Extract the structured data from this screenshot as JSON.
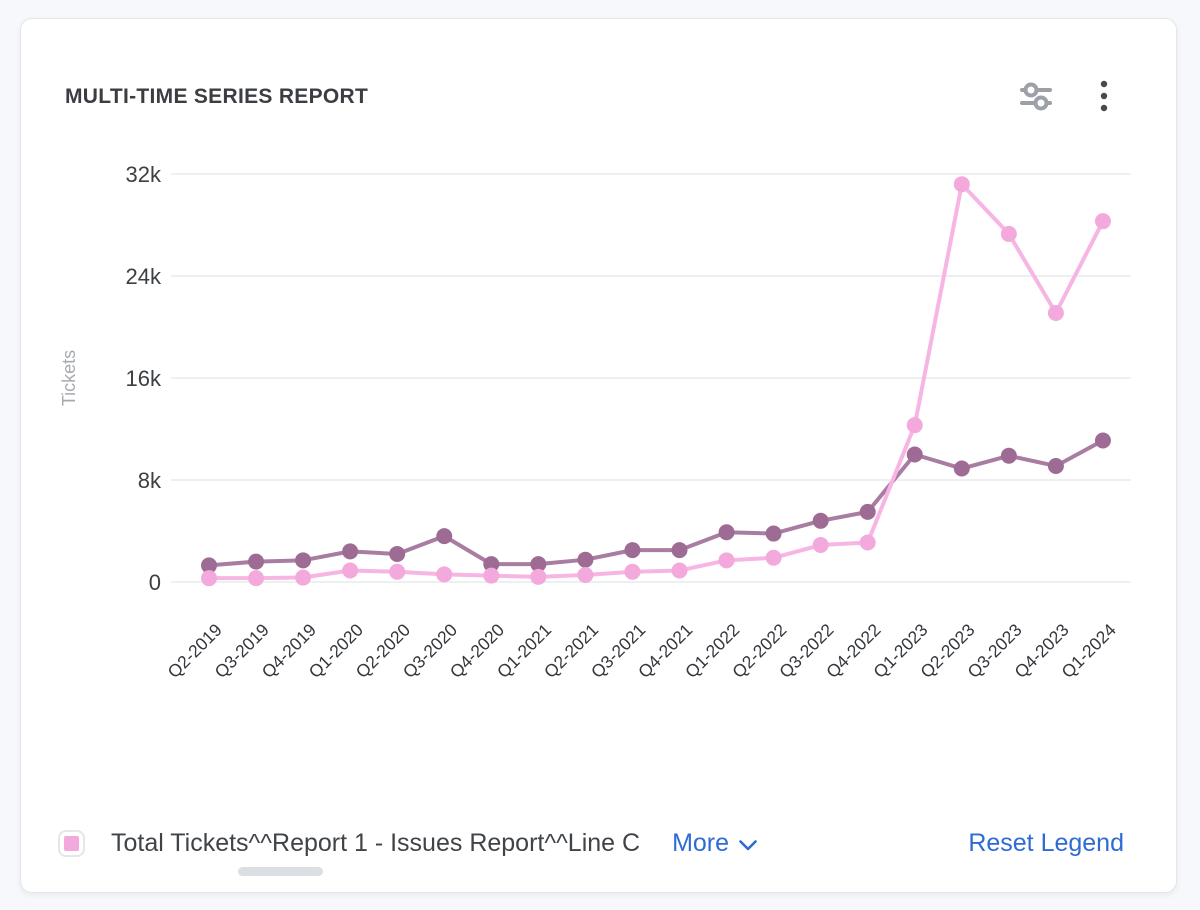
{
  "card": {
    "title": "MULTI-TIME SERIES REPORT",
    "header_icons": [
      "filter-sliders-icon",
      "kebab-menu-icon"
    ]
  },
  "legend": {
    "series_label": "Total Tickets^^Report 1 - Issues Report^^Line C",
    "swatch_color": "#f3a9dc",
    "more_label": "More",
    "reset_label": "Reset Legend",
    "link_color": "#2e6bd4"
  },
  "colors": {
    "page_background": "#f6f8fb",
    "card_background": "#ffffff",
    "grid": "#e9eaec",
    "tick_text": "#3c4043",
    "axis_title_text": "#a6aab0",
    "pink_series": "#f3a9dc",
    "mauve_series": "#9e6b94"
  },
  "chart_data": {
    "type": "line",
    "title": "MULTI-TIME SERIES REPORT",
    "xlabel": "",
    "ylabel": "Tickets",
    "ylim": [
      0,
      32000
    ],
    "yticks": [
      0,
      8000,
      16000,
      24000,
      32000
    ],
    "ytick_labels": [
      "0",
      "8k",
      "16k",
      "24k",
      "32k"
    ],
    "grid": true,
    "legend_position": "bottom",
    "categories": [
      "Q2-2019",
      "Q3-2019",
      "Q4-2019",
      "Q1-2020",
      "Q2-2020",
      "Q3-2020",
      "Q4-2020",
      "Q1-2021",
      "Q2-2021",
      "Q3-2021",
      "Q4-2021",
      "Q1-2022",
      "Q2-2022",
      "Q3-2022",
      "Q4-2022",
      "Q1-2023",
      "Q2-2023",
      "Q3-2023",
      "Q4-2023",
      "Q1-2024"
    ],
    "series": [
      {
        "name": "",
        "legend_visible": false,
        "marker_color": "#9e6b94",
        "line_color": "#a87da1",
        "values": [
          1300,
          1600,
          1700,
          2400,
          2200,
          3600,
          1400,
          1400,
          1750,
          2500,
          2500,
          3900,
          3800,
          4800,
          5500,
          10000,
          8900,
          9900,
          9100,
          11100
        ]
      },
      {
        "name": "Total Tickets^^Report 1 - Issues Report^^Line C",
        "legend_visible": true,
        "marker_color": "#f3a9dc",
        "line_color": "#f6b5e3",
        "values": [
          300,
          300,
          350,
          900,
          800,
          600,
          500,
          400,
          550,
          800,
          900,
          1700,
          1900,
          2900,
          3100,
          12300,
          31200,
          27300,
          21100,
          28300
        ]
      }
    ]
  }
}
